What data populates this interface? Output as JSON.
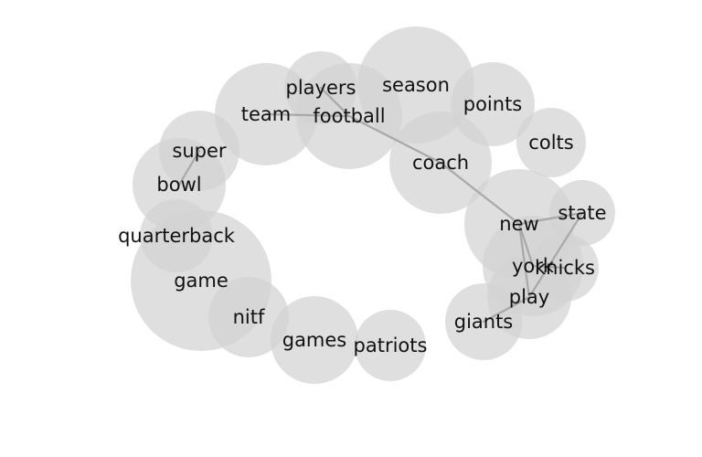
{
  "diagram": {
    "type": "word-cluster-network",
    "nodes": [
      {
        "id": "players",
        "label": "players"
      },
      {
        "id": "season",
        "label": "season"
      },
      {
        "id": "team",
        "label": "team"
      },
      {
        "id": "football",
        "label": "football"
      },
      {
        "id": "points",
        "label": "points"
      },
      {
        "id": "colts",
        "label": "colts"
      },
      {
        "id": "super",
        "label": "super"
      },
      {
        "id": "coach",
        "label": "coach"
      },
      {
        "id": "bowl",
        "label": "bowl"
      },
      {
        "id": "new",
        "label": "new"
      },
      {
        "id": "state",
        "label": "state"
      },
      {
        "id": "quarterback",
        "label": "quarterback"
      },
      {
        "id": "york",
        "label": "york"
      },
      {
        "id": "knicks",
        "label": "knicks"
      },
      {
        "id": "game",
        "label": "game"
      },
      {
        "id": "play",
        "label": "play"
      },
      {
        "id": "nitf",
        "label": "nitf"
      },
      {
        "id": "giants",
        "label": "giants"
      },
      {
        "id": "games",
        "label": "games"
      },
      {
        "id": "patriots",
        "label": "patriots"
      }
    ],
    "edges": [
      {
        "source": "team",
        "target": "football"
      },
      {
        "source": "players",
        "target": "football"
      },
      {
        "source": "football",
        "target": "coach"
      },
      {
        "source": "coach",
        "target": "new"
      },
      {
        "source": "super",
        "target": "bowl"
      },
      {
        "source": "new",
        "target": "state"
      },
      {
        "source": "new",
        "target": "york"
      },
      {
        "source": "new",
        "target": "play"
      },
      {
        "source": "york",
        "target": "knicks"
      },
      {
        "source": "state",
        "target": "play"
      },
      {
        "source": "play",
        "target": "giants"
      }
    ]
  }
}
